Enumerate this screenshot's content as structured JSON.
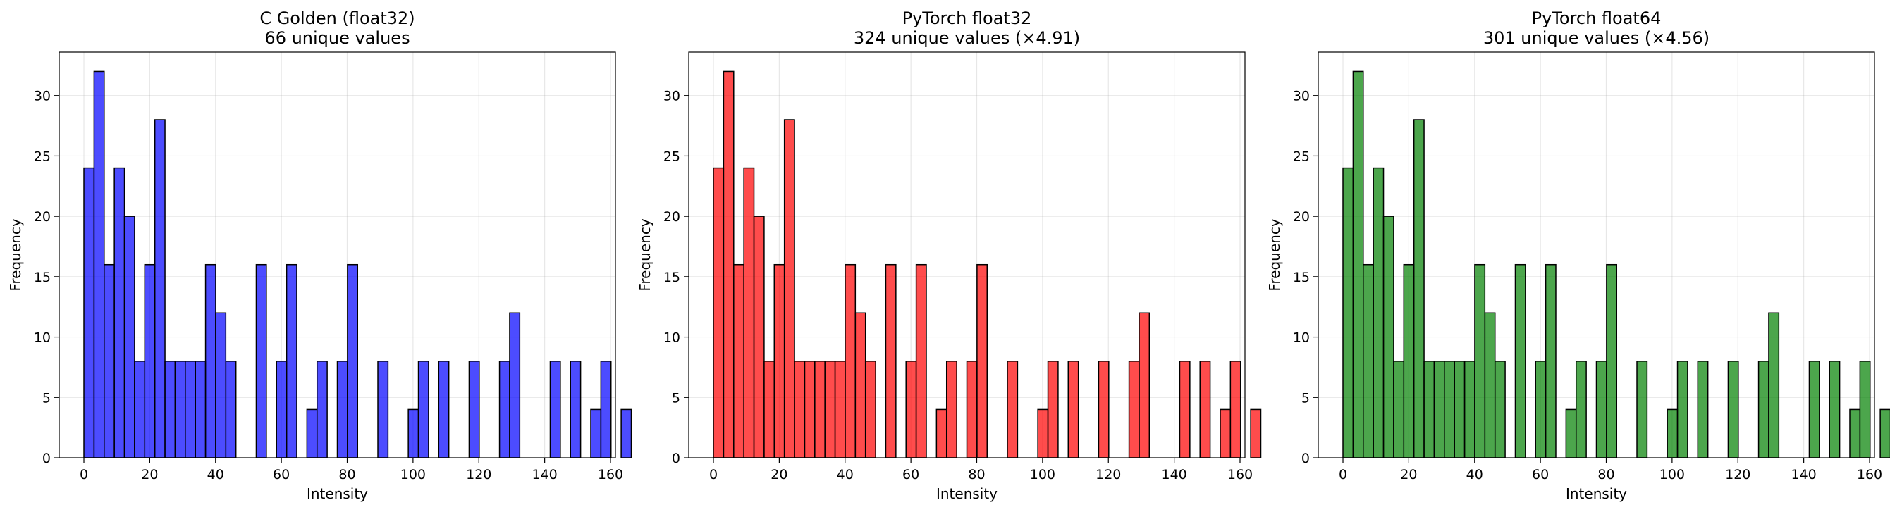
{
  "chart_data": [
    {
      "type": "bar",
      "title_line1": "C Golden (float32)",
      "title_line2": "66 unique values",
      "xlabel": "Intensity",
      "ylabel": "Frequency",
      "color": "#0000ff",
      "xlim": [
        -7.5,
        161.5
      ],
      "ylim": [
        0,
        33.6
      ],
      "xticks": [
        0,
        20,
        40,
        60,
        80,
        100,
        120,
        140,
        160
      ],
      "yticks": [
        0,
        5,
        10,
        15,
        20,
        25,
        30
      ],
      "grid": true,
      "bin_width": 3.08,
      "bin_start": 0,
      "counts": [
        24,
        32,
        16,
        24,
        20,
        8,
        16,
        28,
        8,
        8,
        8,
        8,
        16,
        12,
        8,
        0,
        0,
        16,
        0,
        8,
        16,
        0,
        4,
        8,
        0,
        8,
        16,
        0,
        0,
        8,
        0,
        0,
        4,
        8,
        0,
        8,
        0,
        0,
        8,
        0,
        0,
        8,
        12,
        0,
        0,
        0,
        8,
        0,
        8,
        0,
        4,
        8,
        0,
        4
      ]
    },
    {
      "type": "bar",
      "title_line1": "PyTorch float32",
      "title_line2": "324 unique values (×4.91)",
      "xlabel": "Intensity",
      "ylabel": "Frequency",
      "color": "#ff0000",
      "xlim": [
        -7.5,
        161.5
      ],
      "ylim": [
        0,
        33.6
      ],
      "xticks": [
        0,
        20,
        40,
        60,
        80,
        100,
        120,
        140,
        160
      ],
      "yticks": [
        0,
        5,
        10,
        15,
        20,
        25,
        30
      ],
      "grid": true,
      "bin_width": 3.08,
      "bin_start": 0,
      "counts": [
        24,
        32,
        16,
        24,
        20,
        8,
        16,
        28,
        8,
        8,
        8,
        8,
        8,
        16,
        12,
        8,
        0,
        16,
        0,
        8,
        16,
        0,
        4,
        8,
        0,
        8,
        16,
        0,
        0,
        8,
        0,
        0,
        4,
        8,
        0,
        8,
        0,
        0,
        8,
        0,
        0,
        8,
        12,
        0,
        0,
        0,
        8,
        0,
        8,
        0,
        4,
        8,
        0,
        4
      ]
    },
    {
      "type": "bar",
      "title_line1": "PyTorch float64",
      "title_line2": "301 unique values (×4.56)",
      "xlabel": "Intensity",
      "ylabel": "Frequency",
      "color": "#008000",
      "xlim": [
        -7.5,
        161.5
      ],
      "ylim": [
        0,
        33.6
      ],
      "xticks": [
        0,
        20,
        40,
        60,
        80,
        100,
        120,
        140,
        160
      ],
      "yticks": [
        0,
        5,
        10,
        15,
        20,
        25,
        30
      ],
      "grid": true,
      "bin_width": 3.08,
      "bin_start": 0,
      "counts": [
        24,
        32,
        16,
        24,
        20,
        8,
        16,
        28,
        8,
        8,
        8,
        8,
        8,
        16,
        12,
        8,
        0,
        16,
        0,
        8,
        16,
        0,
        4,
        8,
        0,
        8,
        16,
        0,
        0,
        8,
        0,
        0,
        4,
        8,
        0,
        8,
        0,
        0,
        8,
        0,
        0,
        8,
        12,
        0,
        0,
        0,
        8,
        0,
        8,
        0,
        4,
        8,
        0,
        4
      ]
    }
  ]
}
